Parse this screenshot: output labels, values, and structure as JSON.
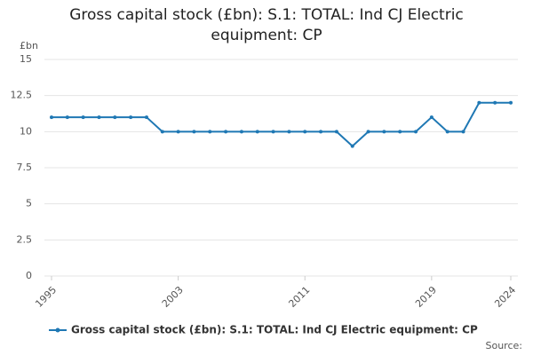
{
  "chart_data": {
    "type": "line",
    "title": "Gross capital stock (£bn): S.1: TOTAL: Ind CJ Electric equipment: CP",
    "y_unit_label": "£bn",
    "source": "Source:",
    "x": [
      1995,
      1996,
      1997,
      1998,
      1999,
      2000,
      2001,
      2002,
      2003,
      2004,
      2005,
      2006,
      2007,
      2008,
      2009,
      2010,
      2011,
      2012,
      2013,
      2014,
      2015,
      2016,
      2017,
      2018,
      2019,
      2020,
      2021,
      2022,
      2023,
      2024
    ],
    "series": [
      {
        "name": "Gross capital stock (£bn): S.1: TOTAL: Ind CJ Electric equipment: CP",
        "color": "#1f78b4",
        "values": [
          11,
          11,
          11,
          11,
          11,
          11,
          11,
          10,
          10,
          10,
          10,
          10,
          10,
          10,
          10,
          10,
          10,
          10,
          10,
          9,
          10,
          10,
          10,
          10,
          11,
          10,
          10,
          12,
          12,
          12
        ]
      }
    ],
    "xlim": [
      1995,
      2024
    ],
    "xticks": [
      1995,
      2003,
      2011,
      2019,
      2024
    ],
    "ylim": [
      0,
      15
    ],
    "yticks": [
      0,
      2.5,
      5,
      7.5,
      10,
      12.5,
      15
    ],
    "grid": true,
    "legend": "bottom"
  }
}
